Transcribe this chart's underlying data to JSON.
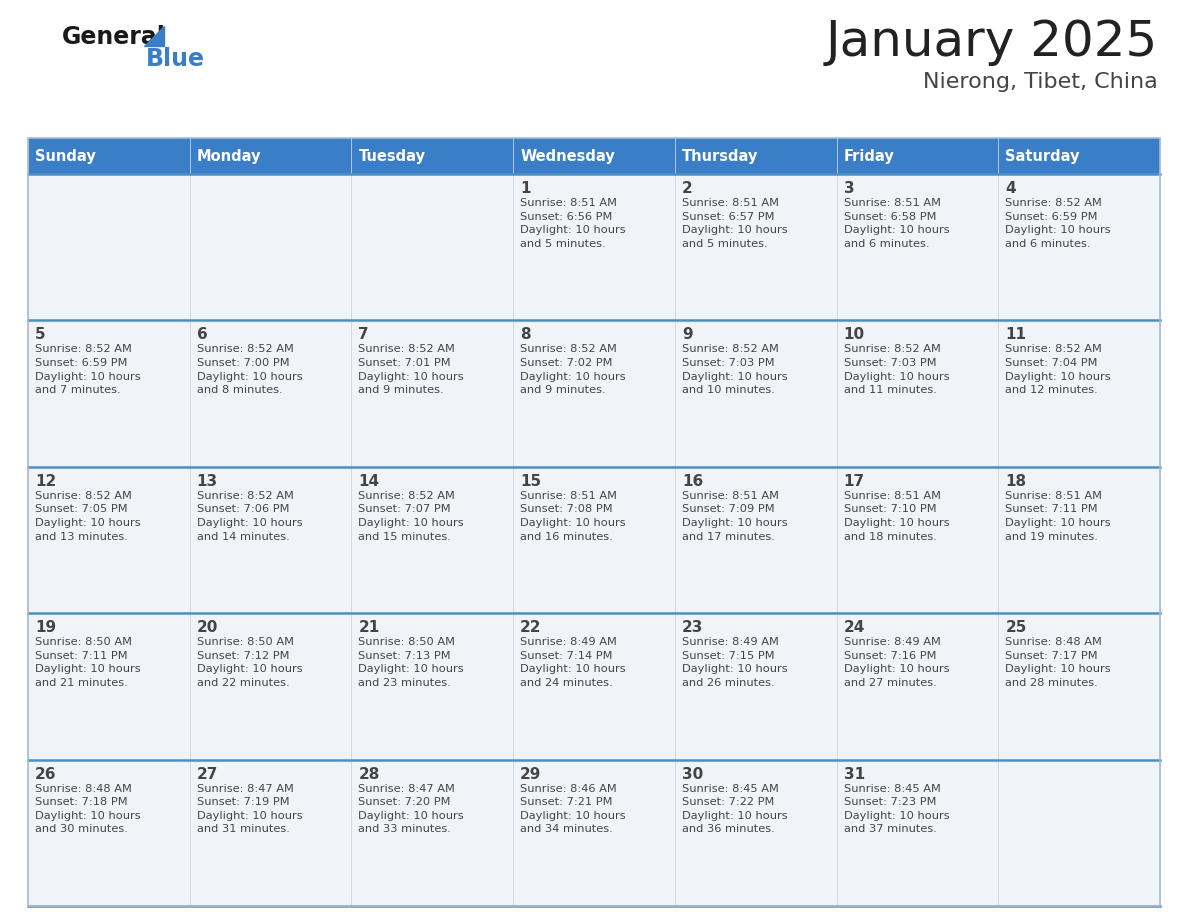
{
  "title": "January 2025",
  "subtitle": "Nierong, Tibet, China",
  "days_of_week": [
    "Sunday",
    "Monday",
    "Tuesday",
    "Wednesday",
    "Thursday",
    "Friday",
    "Saturday"
  ],
  "header_bg": "#3a7ec8",
  "header_text": "#ffffff",
  "cell_bg": "#f0f4f8",
  "divider_color": "#4a90c4",
  "text_color": "#444444",
  "title_color": "#222222",
  "subtitle_color": "#444444",
  "calendar_data": [
    [
      {
        "day": null,
        "info": null
      },
      {
        "day": null,
        "info": null
      },
      {
        "day": null,
        "info": null
      },
      {
        "day": 1,
        "info": "Sunrise: 8:51 AM\nSunset: 6:56 PM\nDaylight: 10 hours\nand 5 minutes."
      },
      {
        "day": 2,
        "info": "Sunrise: 8:51 AM\nSunset: 6:57 PM\nDaylight: 10 hours\nand 5 minutes."
      },
      {
        "day": 3,
        "info": "Sunrise: 8:51 AM\nSunset: 6:58 PM\nDaylight: 10 hours\nand 6 minutes."
      },
      {
        "day": 4,
        "info": "Sunrise: 8:52 AM\nSunset: 6:59 PM\nDaylight: 10 hours\nand 6 minutes."
      }
    ],
    [
      {
        "day": 5,
        "info": "Sunrise: 8:52 AM\nSunset: 6:59 PM\nDaylight: 10 hours\nand 7 minutes."
      },
      {
        "day": 6,
        "info": "Sunrise: 8:52 AM\nSunset: 7:00 PM\nDaylight: 10 hours\nand 8 minutes."
      },
      {
        "day": 7,
        "info": "Sunrise: 8:52 AM\nSunset: 7:01 PM\nDaylight: 10 hours\nand 9 minutes."
      },
      {
        "day": 8,
        "info": "Sunrise: 8:52 AM\nSunset: 7:02 PM\nDaylight: 10 hours\nand 9 minutes."
      },
      {
        "day": 9,
        "info": "Sunrise: 8:52 AM\nSunset: 7:03 PM\nDaylight: 10 hours\nand 10 minutes."
      },
      {
        "day": 10,
        "info": "Sunrise: 8:52 AM\nSunset: 7:03 PM\nDaylight: 10 hours\nand 11 minutes."
      },
      {
        "day": 11,
        "info": "Sunrise: 8:52 AM\nSunset: 7:04 PM\nDaylight: 10 hours\nand 12 minutes."
      }
    ],
    [
      {
        "day": 12,
        "info": "Sunrise: 8:52 AM\nSunset: 7:05 PM\nDaylight: 10 hours\nand 13 minutes."
      },
      {
        "day": 13,
        "info": "Sunrise: 8:52 AM\nSunset: 7:06 PM\nDaylight: 10 hours\nand 14 minutes."
      },
      {
        "day": 14,
        "info": "Sunrise: 8:52 AM\nSunset: 7:07 PM\nDaylight: 10 hours\nand 15 minutes."
      },
      {
        "day": 15,
        "info": "Sunrise: 8:51 AM\nSunset: 7:08 PM\nDaylight: 10 hours\nand 16 minutes."
      },
      {
        "day": 16,
        "info": "Sunrise: 8:51 AM\nSunset: 7:09 PM\nDaylight: 10 hours\nand 17 minutes."
      },
      {
        "day": 17,
        "info": "Sunrise: 8:51 AM\nSunset: 7:10 PM\nDaylight: 10 hours\nand 18 minutes."
      },
      {
        "day": 18,
        "info": "Sunrise: 8:51 AM\nSunset: 7:11 PM\nDaylight: 10 hours\nand 19 minutes."
      }
    ],
    [
      {
        "day": 19,
        "info": "Sunrise: 8:50 AM\nSunset: 7:11 PM\nDaylight: 10 hours\nand 21 minutes."
      },
      {
        "day": 20,
        "info": "Sunrise: 8:50 AM\nSunset: 7:12 PM\nDaylight: 10 hours\nand 22 minutes."
      },
      {
        "day": 21,
        "info": "Sunrise: 8:50 AM\nSunset: 7:13 PM\nDaylight: 10 hours\nand 23 minutes."
      },
      {
        "day": 22,
        "info": "Sunrise: 8:49 AM\nSunset: 7:14 PM\nDaylight: 10 hours\nand 24 minutes."
      },
      {
        "day": 23,
        "info": "Sunrise: 8:49 AM\nSunset: 7:15 PM\nDaylight: 10 hours\nand 26 minutes."
      },
      {
        "day": 24,
        "info": "Sunrise: 8:49 AM\nSunset: 7:16 PM\nDaylight: 10 hours\nand 27 minutes."
      },
      {
        "day": 25,
        "info": "Sunrise: 8:48 AM\nSunset: 7:17 PM\nDaylight: 10 hours\nand 28 minutes."
      }
    ],
    [
      {
        "day": 26,
        "info": "Sunrise: 8:48 AM\nSunset: 7:18 PM\nDaylight: 10 hours\nand 30 minutes."
      },
      {
        "day": 27,
        "info": "Sunrise: 8:47 AM\nSunset: 7:19 PM\nDaylight: 10 hours\nand 31 minutes."
      },
      {
        "day": 28,
        "info": "Sunrise: 8:47 AM\nSunset: 7:20 PM\nDaylight: 10 hours\nand 33 minutes."
      },
      {
        "day": 29,
        "info": "Sunrise: 8:46 AM\nSunset: 7:21 PM\nDaylight: 10 hours\nand 34 minutes."
      },
      {
        "day": 30,
        "info": "Sunrise: 8:45 AM\nSunset: 7:22 PM\nDaylight: 10 hours\nand 36 minutes."
      },
      {
        "day": 31,
        "info": "Sunrise: 8:45 AM\nSunset: 7:23 PM\nDaylight: 10 hours\nand 37 minutes."
      },
      {
        "day": null,
        "info": null
      }
    ]
  ]
}
